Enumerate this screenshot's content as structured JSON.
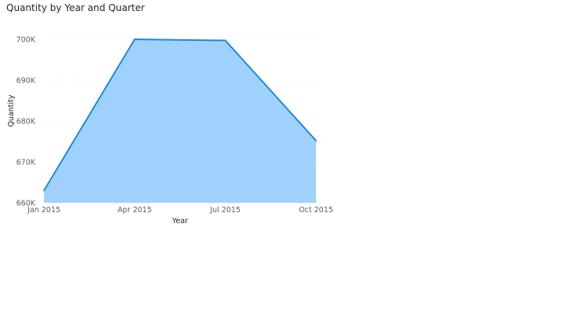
{
  "chart_data": {
    "type": "area",
    "title": "Quantity by Year and Quarter",
    "xlabel": "Year",
    "ylabel": "Quantity",
    "x": [
      "Jan 2015",
      "Apr 2015",
      "Jul 2015",
      "Oct 2015"
    ],
    "values": [
      663000,
      700000,
      699700,
      675200
    ],
    "ylim": [
      660000,
      702000
    ],
    "yticks": [
      660000,
      670000,
      680000,
      690000,
      700000
    ],
    "ytick_labels": [
      "660K",
      "670K",
      "680K",
      "690K",
      "700K"
    ],
    "grid": true,
    "legend": "none",
    "colors": {
      "line": "#1f8bd6",
      "fill": "#a0d1fd",
      "grid": "#f0f0f0"
    }
  }
}
